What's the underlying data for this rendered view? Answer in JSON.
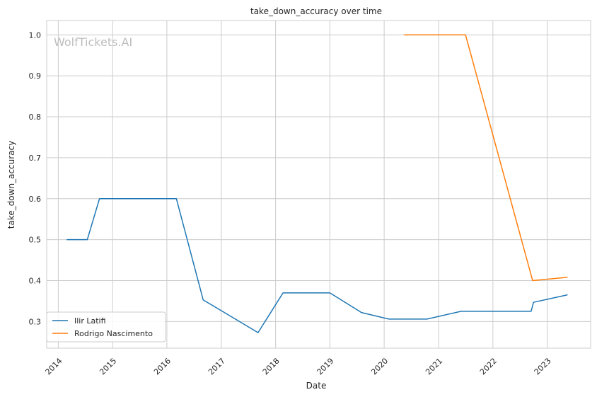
{
  "chart_data": {
    "type": "line",
    "title": "take_down_accuracy over time",
    "xlabel": "Date",
    "ylabel": "take_down_accuracy",
    "watermark": "WolfTickets.AI",
    "xlim": [
      "2013-10-15",
      "2023-10-20"
    ],
    "ylim": [
      0.235,
      1.035
    ],
    "x_ticks": [
      "2014",
      "2015",
      "2016",
      "2017",
      "2018",
      "2019",
      "2020",
      "2021",
      "2022",
      "2023"
    ],
    "y_ticks": [
      "0.3",
      "0.4",
      "0.5",
      "0.6",
      "0.7",
      "0.8",
      "0.9",
      "1.0"
    ],
    "grid": true,
    "legend_position": "lower-left",
    "series": [
      {
        "name": "Ilir Latifi",
        "color": "#1f77b4",
        "points": [
          {
            "x": "2014-03-01",
            "y": 0.5
          },
          {
            "x": "2014-07-15",
            "y": 0.5
          },
          {
            "x": "2014-10-05",
            "y": 0.6
          },
          {
            "x": "2016-03-05",
            "y": 0.6
          },
          {
            "x": "2016-09-01",
            "y": 0.353
          },
          {
            "x": "2017-09-05",
            "y": 0.273
          },
          {
            "x": "2018-02-20",
            "y": 0.37
          },
          {
            "x": "2019-01-01",
            "y": 0.37
          },
          {
            "x": "2019-08-01",
            "y": 0.322
          },
          {
            "x": "2020-02-01",
            "y": 0.306
          },
          {
            "x": "2020-10-15",
            "y": 0.306
          },
          {
            "x": "2021-06-01",
            "y": 0.325
          },
          {
            "x": "2022-09-15",
            "y": 0.325
          },
          {
            "x": "2022-10-01",
            "y": 0.347
          },
          {
            "x": "2023-05-15",
            "y": 0.365
          }
        ]
      },
      {
        "name": "Rodrigo Nascimento",
        "color": "#ff7f0e",
        "points": [
          {
            "x": "2020-05-15",
            "y": 1.0
          },
          {
            "x": "2021-07-01",
            "y": 1.0
          },
          {
            "x": "2022-09-25",
            "y": 0.4
          },
          {
            "x": "2023-05-15",
            "y": 0.408
          }
        ]
      }
    ]
  }
}
